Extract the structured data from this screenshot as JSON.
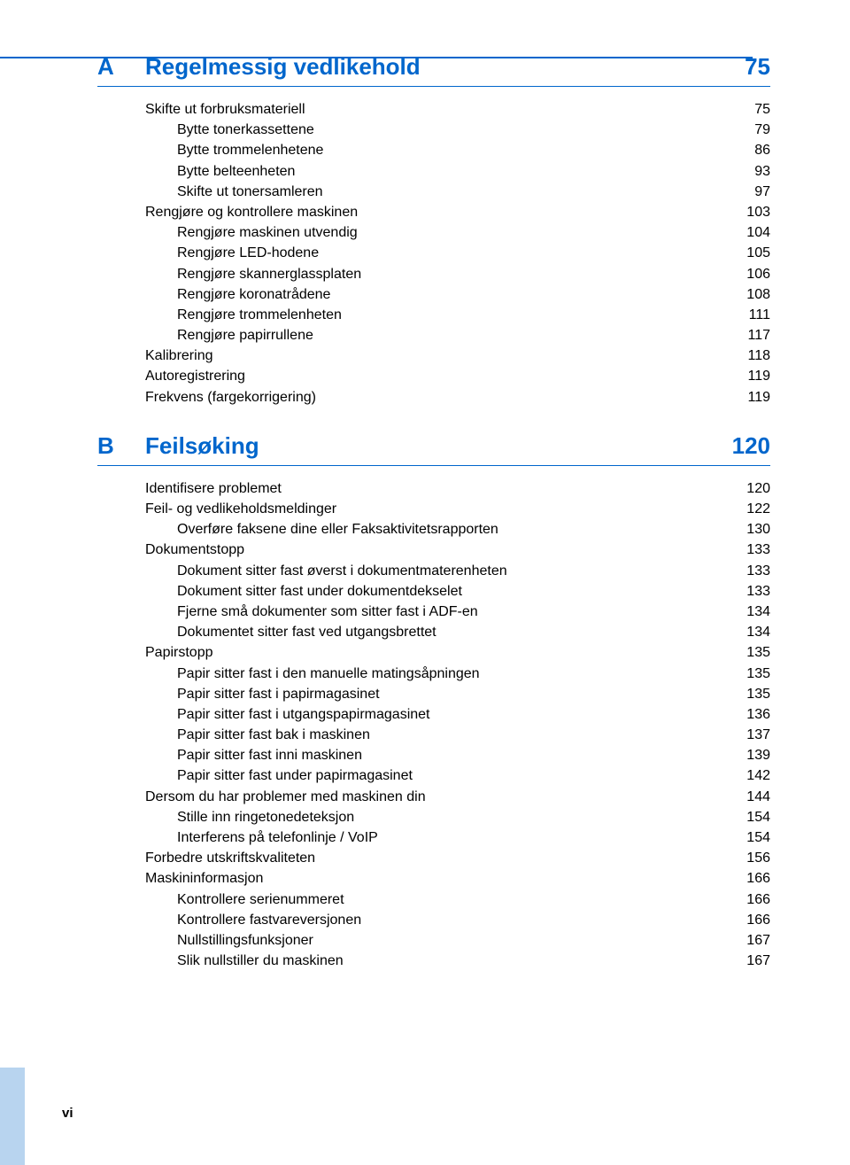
{
  "colors": {
    "accent": "#0066cc",
    "tab_bg": "#b8d4ef",
    "text": "#000000",
    "background": "#ffffff"
  },
  "typography": {
    "section_fontsize_pt": 20,
    "entry_fontsize_pt": 12,
    "font_family": "Arial"
  },
  "page_footer": "vi",
  "sections": [
    {
      "letter": "A",
      "title": "Regelmessig vedlikehold",
      "page": "75",
      "entries": [
        {
          "indent": 0,
          "label": "Skifte ut forbruksmateriell",
          "page": "75"
        },
        {
          "indent": 1,
          "label": "Bytte tonerkassettene",
          "page": "79"
        },
        {
          "indent": 1,
          "label": "Bytte trommelenhetene",
          "page": "86"
        },
        {
          "indent": 1,
          "label": "Bytte belteenheten",
          "page": "93"
        },
        {
          "indent": 1,
          "label": "Skifte ut tonersamleren",
          "page": "97"
        },
        {
          "indent": 0,
          "label": "Rengjøre og kontrollere maskinen",
          "page": "103"
        },
        {
          "indent": 1,
          "label": "Rengjøre maskinen utvendig",
          "page": "104"
        },
        {
          "indent": 1,
          "label": "Rengjøre LED-hodene",
          "page": "105"
        },
        {
          "indent": 1,
          "label": "Rengjøre skannerglassplaten",
          "page": "106"
        },
        {
          "indent": 1,
          "label": "Rengjøre koronatrådene",
          "page": "108"
        },
        {
          "indent": 1,
          "label": "Rengjøre trommelenheten",
          "page": "111"
        },
        {
          "indent": 1,
          "label": "Rengjøre papirrullene",
          "page": "117"
        },
        {
          "indent": 0,
          "label": "Kalibrering",
          "page": "118"
        },
        {
          "indent": 0,
          "label": "Autoregistrering",
          "page": "119"
        },
        {
          "indent": 0,
          "label": "Frekvens (fargekorrigering)",
          "page": "119"
        }
      ]
    },
    {
      "letter": "B",
      "title": "Feilsøking",
      "page": "120",
      "entries": [
        {
          "indent": 0,
          "label": "Identifisere problemet",
          "page": "120"
        },
        {
          "indent": 0,
          "label": "Feil- og vedlikeholdsmeldinger",
          "page": "122"
        },
        {
          "indent": 1,
          "label": "Overføre faksene dine eller Faksaktivitetsrapporten",
          "page": "130"
        },
        {
          "indent": 0,
          "label": "Dokumentstopp",
          "page": "133"
        },
        {
          "indent": 1,
          "label": "Dokument sitter fast øverst i dokumentmaterenheten",
          "page": "133"
        },
        {
          "indent": 1,
          "label": "Dokument sitter fast under dokumentdekselet",
          "page": "133"
        },
        {
          "indent": 1,
          "label": "Fjerne små dokumenter som sitter fast i ADF-en",
          "page": "134"
        },
        {
          "indent": 1,
          "label": "Dokumentet sitter fast ved utgangsbrettet",
          "page": "134"
        },
        {
          "indent": 0,
          "label": "Papirstopp",
          "page": "135"
        },
        {
          "indent": 1,
          "label": "Papir sitter fast i den manuelle matingsåpningen",
          "page": "135"
        },
        {
          "indent": 1,
          "label": "Papir sitter fast i papirmagasinet",
          "page": "135"
        },
        {
          "indent": 1,
          "label": "Papir sitter fast i utgangspapirmagasinet",
          "page": "136"
        },
        {
          "indent": 1,
          "label": "Papir sitter fast bak i maskinen",
          "page": "137"
        },
        {
          "indent": 1,
          "label": "Papir sitter fast inni maskinen",
          "page": "139"
        },
        {
          "indent": 1,
          "label": "Papir sitter fast under papirmagasinet",
          "page": "142"
        },
        {
          "indent": 0,
          "label": "Dersom du har problemer med maskinen din",
          "page": "144"
        },
        {
          "indent": 1,
          "label": "Stille inn ringetonedeteksjon",
          "page": "154"
        },
        {
          "indent": 1,
          "label": "Interferens på telefonlinje / VoIP",
          "page": "154"
        },
        {
          "indent": 0,
          "label": "Forbedre utskriftskvaliteten",
          "page": "156"
        },
        {
          "indent": 0,
          "label": "Maskininformasjon",
          "page": "166"
        },
        {
          "indent": 1,
          "label": "Kontrollere serienummeret",
          "page": "166"
        },
        {
          "indent": 1,
          "label": "Kontrollere fastvareversjonen",
          "page": "166"
        },
        {
          "indent": 1,
          "label": "Nullstillingsfunksjoner",
          "page": "167"
        },
        {
          "indent": 1,
          "label": "Slik nullstiller du maskinen",
          "page": "167"
        }
      ]
    }
  ]
}
